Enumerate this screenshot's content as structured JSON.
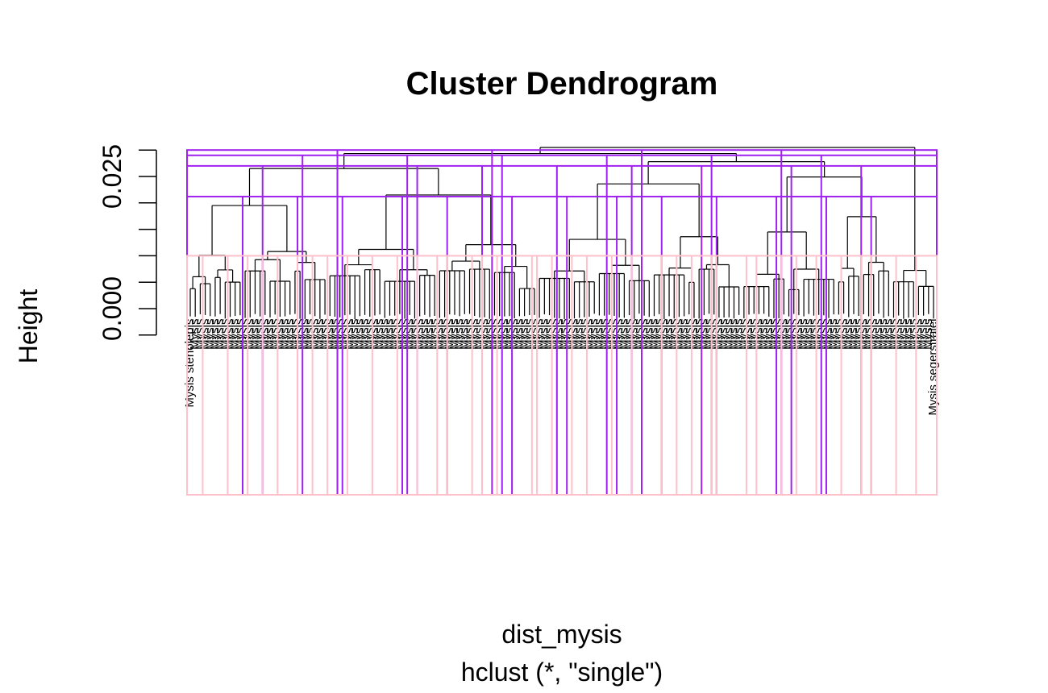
{
  "chart_data": {
    "type": "dendrogram",
    "title": "Cluster Dendrogram",
    "xlabel": "dist_mysis",
    "subtitle": "hclust (*, \"single\")",
    "ylabel": "Height",
    "ylim": [
      -0.007,
      0.031
    ],
    "y_ticks": [
      "0.000",
      "0.025"
    ],
    "y_tick_values": [
      0,
      0.005,
      0.01,
      0.015,
      0.02,
      0.025,
      0.03
    ],
    "leaf_labels": {
      "first": "Mysis stenolepis",
      "last": "Mysis segerstralei",
      "repeated": "Mysis"
    },
    "visible_merge_heights": [
      0.0294,
      0.0288,
      0.0278,
      0.0265,
      0.0249,
      0.0236,
      0.0215,
      0.0195,
      0.0174,
      0.0145,
      0.0136,
      0.0131,
      0.0121,
      0.0112,
      0.0108,
      0.0101
    ],
    "cluster_rectangles": [
      {
        "color": "#a020f0",
        "height_cut": 0.03,
        "groups": 5
      },
      {
        "color": "#a020f0",
        "height_cut": 0.029,
        "groups": 7
      },
      {
        "color": "#a020f0",
        "height_cut": 0.027,
        "groups": 10
      },
      {
        "color": "#a020f0",
        "height_cut": 0.0212,
        "groups": 14
      },
      {
        "color": "#ffc0cb",
        "height_cut": 0.01,
        "groups": 40
      }
    ],
    "colors": {
      "tree": "#000000",
      "rect_coarse": "#a020f0",
      "rect_fine": "#ffc0cb",
      "labels": "#000000"
    }
  }
}
